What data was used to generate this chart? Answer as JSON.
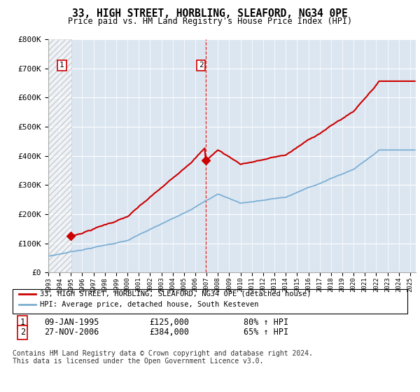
{
  "title": "33, HIGH STREET, HORBLING, SLEAFORD, NG34 0PE",
  "subtitle": "Price paid vs. HM Land Registry's House Price Index (HPI)",
  "ylim": [
    0,
    800000
  ],
  "yticks": [
    0,
    100000,
    200000,
    300000,
    400000,
    500000,
    600000,
    700000,
    800000
  ],
  "xlim_start": 1993.0,
  "xlim_end": 2025.5,
  "sale1_year": 1995.03,
  "sale1_price": 125000,
  "sale2_year": 2006.92,
  "sale2_price": 384000,
  "hpi_color": "#7bafd4",
  "price_color": "#cc0000",
  "background_main": "#dce6f1",
  "grid_color": "#ffffff",
  "legend_line1": "33, HIGH STREET, HORBLING, SLEAFORD, NG34 0PE (detached house)",
  "legend_line2": "HPI: Average price, detached house, South Kesteven",
  "table_row1": [
    "1",
    "09-JAN-1995",
    "£125,000",
    "80% ↑ HPI"
  ],
  "table_row2": [
    "2",
    "27-NOV-2006",
    "£384,000",
    "65% ↑ HPI"
  ],
  "footer": "Contains HM Land Registry data © Crown copyright and database right 2024.\nThis data is licensed under the Open Government Licence v3.0."
}
